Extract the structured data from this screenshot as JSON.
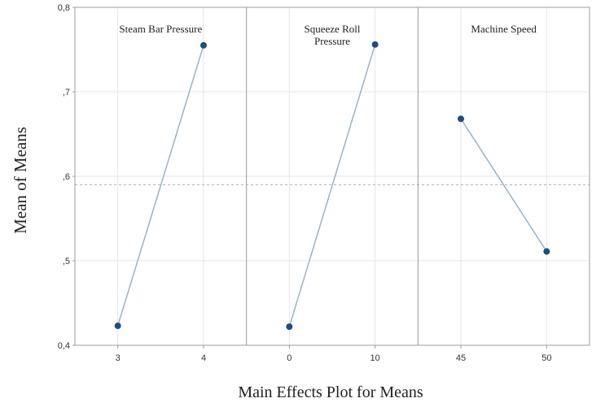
{
  "chart_data": {
    "type": "line",
    "xlabel": "Main Effects Plot for Means",
    "ylabel": "Mean of Means",
    "ylim": [
      0.4,
      0.8
    ],
    "yticks": [
      {
        "value": 0.4,
        "label": "0,4"
      },
      {
        "value": 0.5,
        "label": ",5"
      },
      {
        "value": 0.6,
        "label": ",6"
      },
      {
        "value": 0.7,
        "label": ",7"
      },
      {
        "value": 0.8,
        "label": "0,8"
      }
    ],
    "reference_line": 0.59,
    "grid": true,
    "colors": {
      "line": "#9ab3c7",
      "point": "#1f4e79",
      "reference": "#b0b0b0",
      "grid": "#e6e6e6",
      "frame": "#9c9c9c"
    },
    "panels": [
      {
        "title": [
          "Steam Bar Pressure"
        ],
        "categories": [
          "3",
          "4"
        ],
        "values": [
          0.423,
          0.755
        ]
      },
      {
        "title": [
          "Squeeze Roll",
          "Pressure"
        ],
        "categories": [
          "0",
          "10"
        ],
        "values": [
          0.422,
          0.756
        ]
      },
      {
        "title": [
          "Machine  Speed"
        ],
        "categories": [
          "45",
          "50"
        ],
        "values": [
          0.668,
          0.511
        ]
      }
    ]
  }
}
